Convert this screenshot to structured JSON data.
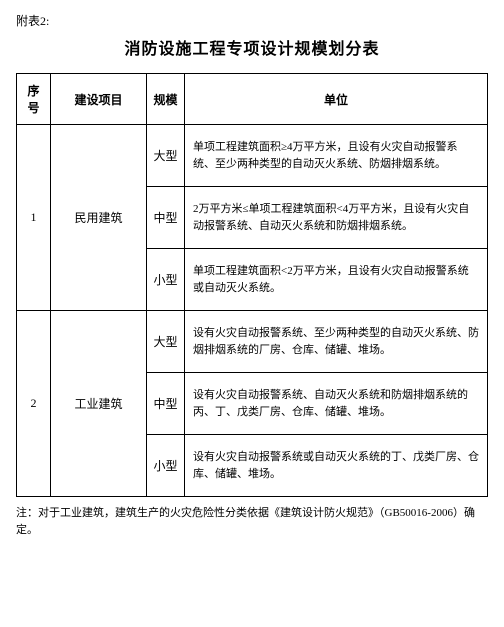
{
  "appendix_label": "附表2:",
  "title": "消防设施工程专项设计规模划分表",
  "headers": {
    "seq": "序号",
    "project": "建设项目",
    "scale": "规模",
    "unit": "单位"
  },
  "rows": [
    {
      "seq": "1",
      "project": "民用建筑",
      "scales": [
        {
          "label": "大型",
          "desc": "单项工程建筑面积≥4万平方米，且设有火灾自动报警系统、至少两种类型的自动灭火系统、防烟排烟系统。"
        },
        {
          "label": "中型",
          "desc": "2万平方米≤单项工程建筑面积<4万平方米，且设有火灾自动报警系统、自动灭火系统和防烟排烟系统。"
        },
        {
          "label": "小型",
          "desc": "单项工程建筑面积<2万平方米，且设有火灾自动报警系统或自动灭火系统。"
        }
      ]
    },
    {
      "seq": "2",
      "project": "工业建筑",
      "scales": [
        {
          "label": "大型",
          "desc": "设有火灾自动报警系统、至少两种类型的自动灭火系统、防烟排烟系统的厂房、仓库、储罐、堆场。"
        },
        {
          "label": "中型",
          "desc": "设有火灾自动报警系统、自动灭火系统和防烟排烟系统的丙、丁、戊类厂房、仓库、储罐、堆场。"
        },
        {
          "label": "小型",
          "desc": "设有火灾自动报警系统或自动灭火系统的丁、戊类厂房、仓库、储罐、堆场。"
        }
      ]
    }
  ],
  "footnote": "注：对于工业建筑，建筑生产的火灾危险性分类依据《建筑设计防火规范》（GB50016-2006）确定。"
}
